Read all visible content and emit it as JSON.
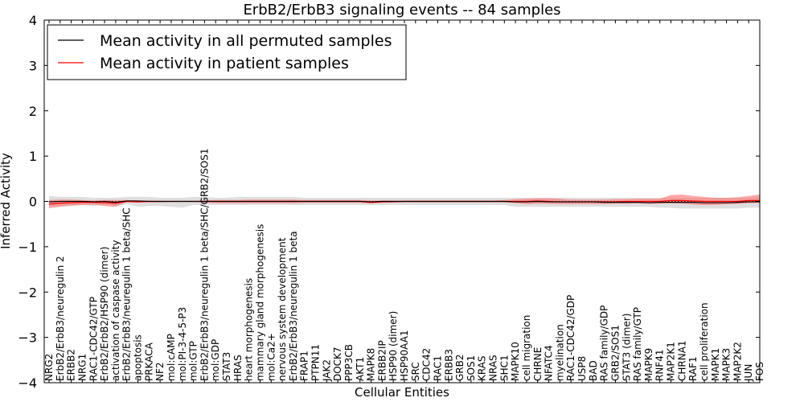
{
  "chart_data": {
    "type": "line",
    "title": "ErbB2/ErbB3 signaling events -- 84 samples",
    "xlabel": "Cellular Entities",
    "ylabel": "Inferred Activity",
    "ylim": [
      -4,
      4
    ],
    "yticks": [
      4,
      3,
      2,
      1,
      0,
      -1,
      -2,
      -3,
      -4
    ],
    "ytick_labels": [
      "4",
      "3",
      "2",
      "1",
      "0",
      "−1",
      "−2",
      "−3",
      "−4"
    ],
    "legend_position": "top-left",
    "categories": [
      "NRG2",
      "ErbB2/ErbB3/neuregulin 2",
      "ERBB2",
      "NRG1",
      "RAC1-CDC42/GTP",
      "ErbB2/ErbB2/HSP90 (dimer)",
      "activation of caspase activity",
      "ErbB2/ErbB3/neuregulin 1 beta/SHC",
      "apoptosis",
      "PRKACA",
      "NF2",
      "mol:cAMP",
      "mol:PI-3-4-5-P3",
      "mol:GTP",
      "ErbB2/ErbB3/neuregulin 1 beta/SHC/GRB2/SOS1",
      "mol:GDP",
      "STAT3",
      "HRAS",
      "heart morphogenesis",
      "mammary gland morphogenesis",
      "mol:Ca2+",
      "nervous system development",
      "ErbB2/ErbB3/neuregulin 1 beta",
      "FRAP1",
      "PTPN11",
      "JAK2",
      "DOCK7",
      "PPP3CB",
      "AKT1",
      "MAPK8",
      "ERBB2IP",
      "HSP90 (dimer)",
      "HSP90AA1",
      "SRC",
      "CDC42",
      "RAC1",
      "ERBB3",
      "GRB2",
      "SOS1",
      "KRAS",
      "NRAS",
      "SHC1",
      "MAPK10",
      "cell migration",
      "CHRNE",
      "NFATC4",
      "myelination",
      "RAC1-CDC42/GDP",
      "USP8",
      "BAD",
      "RAS family/GDP",
      "GRB2/SOS1",
      "STAT3 (dimer)",
      "RAS family/GTP",
      "MAPK9",
      "RNF41",
      "MAP2K1",
      "CHRNA1",
      "RAF1",
      "cell proliferation",
      "MAPK1",
      "MAPK3",
      "MAP2K2",
      "JUN",
      "FOS"
    ],
    "series": [
      {
        "name": "Mean activity in all permuted samples",
        "color": "#000000",
        "values": [
          -0.01,
          0,
          0,
          0,
          -0.01,
          0,
          -0.02,
          0.01,
          0.01,
          0,
          0,
          0,
          0,
          0,
          0,
          0,
          0,
          0,
          0,
          0,
          0,
          0,
          0,
          0,
          0,
          0,
          0,
          0,
          0,
          -0.01,
          0,
          0,
          0,
          0,
          0,
          0,
          0,
          0,
          0,
          0,
          0,
          0,
          -0.01,
          -0.01,
          0,
          -0.01,
          -0.01,
          -0.01,
          -0.01,
          -0.01,
          -0.02,
          -0.02,
          -0.02,
          -0.02,
          -0.03,
          -0.02,
          -0.02,
          -0.02,
          -0.02,
          -0.03,
          -0.03,
          -0.03,
          -0.02,
          -0.01,
          -0.01
        ],
        "band_lower": [
          -0.1,
          -0.1,
          -0.1,
          -0.08,
          -0.1,
          -0.08,
          -0.1,
          -0.06,
          -0.12,
          -0.1,
          -0.1,
          -0.12,
          -0.14,
          -0.08,
          -0.08,
          -0.08,
          -0.08,
          -0.08,
          -0.08,
          -0.08,
          -0.08,
          -0.08,
          -0.08,
          -0.08,
          -0.08,
          -0.08,
          -0.08,
          -0.08,
          -0.08,
          -0.08,
          -0.08,
          -0.08,
          -0.08,
          -0.08,
          -0.08,
          -0.08,
          -0.08,
          -0.08,
          -0.08,
          -0.08,
          -0.08,
          -0.08,
          -0.12,
          -0.12,
          -0.12,
          -0.12,
          -0.12,
          -0.12,
          -0.12,
          -0.12,
          -0.12,
          -0.12,
          -0.12,
          -0.12,
          -0.12,
          -0.14,
          -0.14,
          -0.16,
          -0.16,
          -0.16,
          -0.16,
          -0.16,
          -0.16,
          -0.14,
          -0.14
        ],
        "band_upper": [
          0.12,
          0.1,
          0.1,
          0.1,
          0.08,
          0.08,
          0.08,
          0.1,
          0.1,
          0.1,
          0.08,
          0.08,
          0.08,
          0.1,
          0.1,
          0.08,
          0.08,
          0.1,
          0.1,
          0.1,
          0.1,
          0.1,
          0.1,
          0.08,
          0.08,
          0.08,
          0.08,
          0.08,
          0.08,
          0.08,
          0.08,
          0.08,
          0.08,
          0.08,
          0.08,
          0.08,
          0.08,
          0.08,
          0.08,
          0.08,
          0.08,
          0.08,
          0.08,
          0.08,
          0.08,
          0.08,
          0.08,
          0.08,
          0.08,
          0.08,
          0.08,
          0.08,
          0.08,
          0.08,
          0.08,
          0.08,
          0.08,
          0.08,
          0.08,
          0.08,
          0.08,
          0.08,
          0.08,
          0.08,
          0.1
        ]
      },
      {
        "name": "Mean activity in patient samples",
        "color": "#ff0000",
        "values": [
          -0.06,
          -0.04,
          -0.03,
          -0.02,
          -0.02,
          -0.03,
          -0.04,
          0,
          -0.01,
          0,
          0,
          0,
          0,
          0,
          0,
          0,
          0,
          0,
          0,
          0,
          0,
          0,
          0,
          0,
          0,
          0,
          0,
          0,
          0,
          -0.02,
          -0.01,
          -0.01,
          0,
          0,
          0,
          0,
          0,
          0,
          0,
          0,
          0,
          0,
          0,
          0,
          0.01,
          0,
          -0.01,
          -0.01,
          -0.01,
          -0.01,
          -0.01,
          -0.01,
          0,
          0,
          0,
          0,
          0.02,
          0.02,
          0.01,
          0,
          0,
          0,
          0,
          0.02,
          0.02
        ],
        "band_lower": [
          -0.15,
          -0.12,
          -0.09,
          -0.08,
          -0.07,
          -0.1,
          -0.12,
          -0.02,
          -0.03,
          -0.02,
          -0.02,
          -0.01,
          -0.01,
          -0.01,
          -0.02,
          -0.04,
          -0.04,
          -0.04,
          -0.04,
          -0.04,
          -0.04,
          -0.04,
          -0.04,
          -0.03,
          -0.03,
          -0.03,
          -0.03,
          -0.03,
          -0.03,
          -0.05,
          -0.03,
          -0.02,
          -0.02,
          -0.02,
          -0.02,
          -0.02,
          -0.02,
          -0.02,
          -0.02,
          -0.02,
          -0.02,
          -0.02,
          -0.04,
          -0.06,
          -0.05,
          -0.05,
          -0.06,
          -0.06,
          -0.06,
          -0.06,
          -0.06,
          -0.05,
          -0.05,
          -0.04,
          -0.05,
          -0.05,
          -0.04,
          -0.05,
          -0.07,
          -0.08,
          -0.08,
          -0.06,
          -0.06,
          -0.04,
          -0.03
        ],
        "band_upper": [
          0.03,
          0.04,
          0.04,
          0.03,
          0.02,
          0.03,
          0.03,
          0.03,
          0.02,
          0.02,
          0.01,
          0.01,
          0.01,
          0.01,
          0.02,
          0.03,
          0.03,
          0.03,
          0.04,
          0.04,
          0.04,
          0.04,
          0.04,
          0.03,
          0.03,
          0.03,
          0.03,
          0.03,
          0.03,
          0.02,
          0.02,
          0.02,
          0.02,
          0.02,
          0.02,
          0.02,
          0.02,
          0.02,
          0.02,
          0.02,
          0.02,
          0.03,
          0.05,
          0.06,
          0.07,
          0.07,
          0.06,
          0.04,
          0.04,
          0.04,
          0.04,
          0.05,
          0.05,
          0.06,
          0.06,
          0.06,
          0.14,
          0.15,
          0.12,
          0.1,
          0.08,
          0.08,
          0.09,
          0.12,
          0.15
        ]
      }
    ]
  }
}
